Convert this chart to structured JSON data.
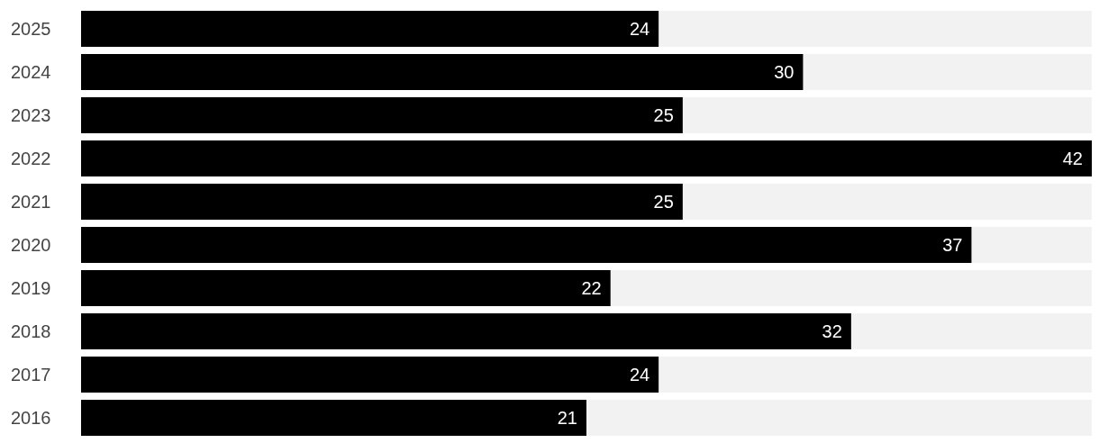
{
  "chart_data": {
    "type": "bar",
    "orientation": "horizontal",
    "categories": [
      "2025",
      "2024",
      "2023",
      "2022",
      "2021",
      "2020",
      "2019",
      "2018",
      "2017",
      "2016"
    ],
    "values": [
      24,
      30,
      25,
      42,
      25,
      37,
      22,
      32,
      24,
      21
    ],
    "color": "#000000",
    "data_labels": true,
    "grid": false,
    "legend": false
  }
}
